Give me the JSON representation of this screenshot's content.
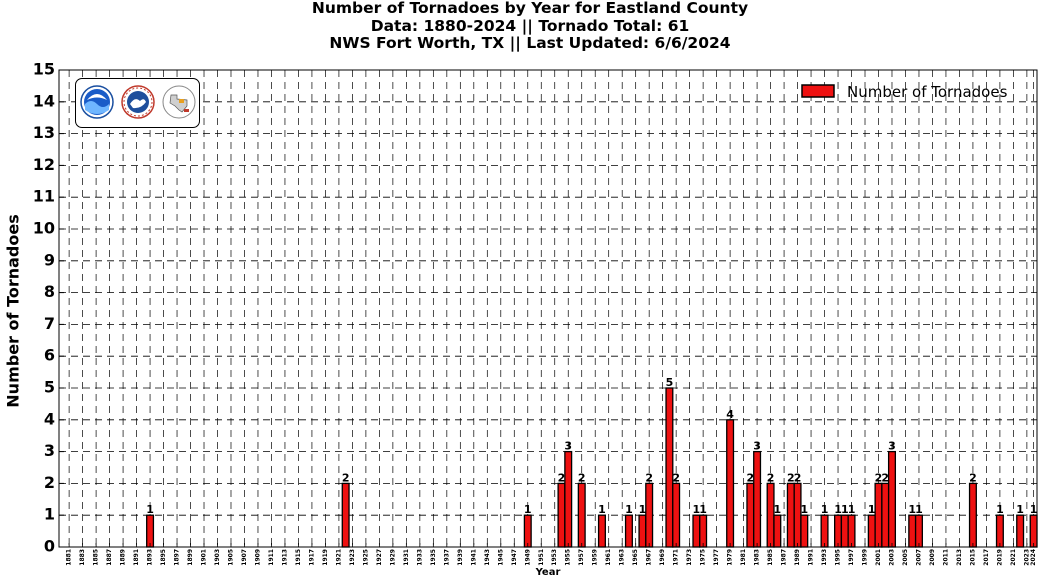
{
  "colors": {
    "bar": "#ee1111",
    "bar_edge": "#000000"
  },
  "chart_data": {
    "type": "bar",
    "title_lines": [
      "Number of Tornadoes by Year for Eastland County",
      "Data: 1880-2024 || Tornado Total: 61",
      "NWS Fort Worth, TX || Last Updated: 6/6/2024"
    ],
    "xlabel": "Year",
    "ylabel": "Number of Tornadoes",
    "ylim": [
      0,
      15
    ],
    "yticks": [
      0,
      1,
      2,
      3,
      4,
      5,
      6,
      7,
      8,
      9,
      10,
      11,
      12,
      13,
      14,
      15
    ],
    "x_range": [
      1880,
      2024
    ],
    "x_tick_years": "odd years 1881-2023 plus 2024",
    "grid": true,
    "legend": {
      "label": "Number of Tornadoes",
      "position": "top-right"
    },
    "logos": [
      "noaa-logo",
      "nws-logo",
      "texas-logo"
    ],
    "bars": [
      {
        "year": 1893,
        "value": 1
      },
      {
        "year": 1922,
        "value": 2
      },
      {
        "year": 1949,
        "value": 1
      },
      {
        "year": 1954,
        "value": 2
      },
      {
        "year": 1955,
        "value": 3
      },
      {
        "year": 1957,
        "value": 2
      },
      {
        "year": 1960,
        "value": 1
      },
      {
        "year": 1964,
        "value": 1
      },
      {
        "year": 1966,
        "value": 1
      },
      {
        "year": 1967,
        "value": 2
      },
      {
        "year": 1970,
        "value": 5
      },
      {
        "year": 1971,
        "value": 2
      },
      {
        "year": 1974,
        "value": 1
      },
      {
        "year": 1975,
        "value": 1
      },
      {
        "year": 1979,
        "value": 4
      },
      {
        "year": 1982,
        "value": 2
      },
      {
        "year": 1983,
        "value": 3
      },
      {
        "year": 1985,
        "value": 2
      },
      {
        "year": 1986,
        "value": 1
      },
      {
        "year": 1988,
        "value": 2
      },
      {
        "year": 1989,
        "value": 2
      },
      {
        "year": 1990,
        "value": 1
      },
      {
        "year": 1993,
        "value": 1
      },
      {
        "year": 1995,
        "value": 1
      },
      {
        "year": 1996,
        "value": 1
      },
      {
        "year": 1997,
        "value": 1
      },
      {
        "year": 2000,
        "value": 1
      },
      {
        "year": 2001,
        "value": 2
      },
      {
        "year": 2002,
        "value": 2
      },
      {
        "year": 2003,
        "value": 3
      },
      {
        "year": 2006,
        "value": 1
      },
      {
        "year": 2007,
        "value": 1
      },
      {
        "year": 2015,
        "value": 2
      },
      {
        "year": 2019,
        "value": 1
      },
      {
        "year": 2022,
        "value": 1
      },
      {
        "year": 2024,
        "value": 1
      }
    ]
  }
}
